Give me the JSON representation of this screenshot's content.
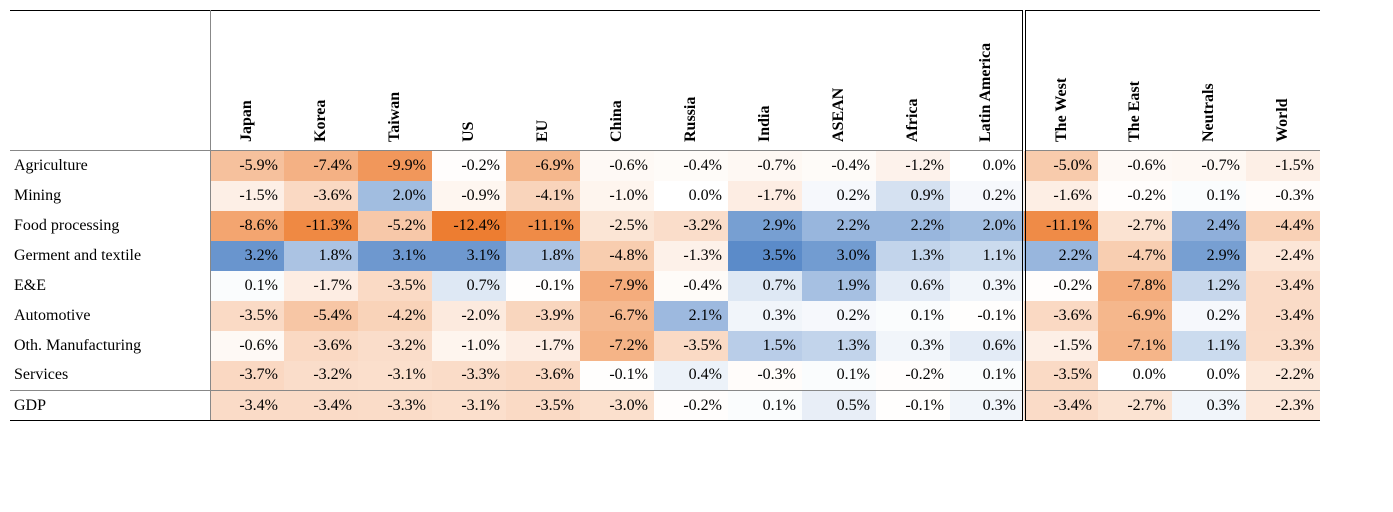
{
  "table": {
    "type": "heatmap-table",
    "font_family": "Times New Roman",
    "font_size_pt": 12,
    "background_color": "#ffffff",
    "text_color": "#000000",
    "border_color_outer": "#000000",
    "border_color_inner": "#888888",
    "double_separator_after_col_index": 10,
    "gdp_row_index": 8,
    "color_scale": {
      "min_value": -12.4,
      "max_value": 3.5,
      "neg_color": "#ed7d31",
      "pos_color": "#5b8bc9",
      "mid_color": "#ffffff"
    },
    "columns": [
      {
        "label": "Japan"
      },
      {
        "label": "Korea"
      },
      {
        "label": "Taiwan"
      },
      {
        "label": "US"
      },
      {
        "label": "EU"
      },
      {
        "label": "China"
      },
      {
        "label": "Russia"
      },
      {
        "label": "India"
      },
      {
        "label": "ASEAN"
      },
      {
        "label": "Africa"
      },
      {
        "label": "Latin America"
      },
      {
        "label": "The West"
      },
      {
        "label": "The East"
      },
      {
        "label": "Neutrals"
      },
      {
        "label": "World"
      }
    ],
    "rows": [
      {
        "label": "Agriculture",
        "values": [
          -5.9,
          -7.4,
          -9.9,
          -0.2,
          -6.9,
          -0.6,
          -0.4,
          -0.7,
          -0.4,
          -1.2,
          0.0,
          -5.0,
          -0.6,
          -0.7,
          -1.5
        ]
      },
      {
        "label": "Mining",
        "values": [
          -1.5,
          -3.6,
          2.0,
          -0.9,
          -4.1,
          -1.0,
          0.0,
          -1.7,
          0.2,
          0.9,
          0.2,
          -1.6,
          -0.2,
          0.1,
          -0.3
        ]
      },
      {
        "label": "Food processing",
        "values": [
          -8.6,
          -11.3,
          -5.2,
          -12.4,
          -11.1,
          -2.5,
          -3.2,
          2.9,
          2.2,
          2.2,
          2.0,
          -11.1,
          -2.7,
          2.4,
          -4.4
        ]
      },
      {
        "label": "Germent and textile",
        "values": [
          3.2,
          1.8,
          3.1,
          3.1,
          1.8,
          -4.8,
          -1.3,
          3.5,
          3.0,
          1.3,
          1.1,
          2.2,
          -4.7,
          2.9,
          -2.4
        ]
      },
      {
        "label": "E&E",
        "values": [
          0.1,
          -1.7,
          -3.5,
          0.7,
          -0.1,
          -7.9,
          -0.4,
          0.7,
          1.9,
          0.6,
          0.3,
          -0.2,
          -7.8,
          1.2,
          -3.4
        ]
      },
      {
        "label": "Automotive",
        "values": [
          -3.5,
          -5.4,
          -4.2,
          -2.0,
          -3.9,
          -6.7,
          2.1,
          0.3,
          0.2,
          0.1,
          -0.1,
          -3.6,
          -6.9,
          0.2,
          -3.4
        ]
      },
      {
        "label": "Oth. Manufacturing",
        "values": [
          -0.6,
          -3.6,
          -3.2,
          -1.0,
          -1.7,
          -7.2,
          -3.5,
          1.5,
          1.3,
          0.3,
          0.6,
          -1.5,
          -7.1,
          1.1,
          -3.3
        ]
      },
      {
        "label": "Services",
        "values": [
          -3.7,
          -3.2,
          -3.1,
          -3.3,
          -3.6,
          -0.1,
          0.4,
          -0.3,
          0.1,
          -0.2,
          0.1,
          -3.5,
          0.0,
          0.0,
          -2.2
        ]
      },
      {
        "label": "GDP",
        "values": [
          -3.4,
          -3.4,
          -3.3,
          -3.1,
          -3.5,
          -3.0,
          -0.2,
          0.1,
          0.5,
          -0.1,
          0.3,
          -3.4,
          -2.7,
          0.3,
          -2.3
        ]
      }
    ]
  }
}
